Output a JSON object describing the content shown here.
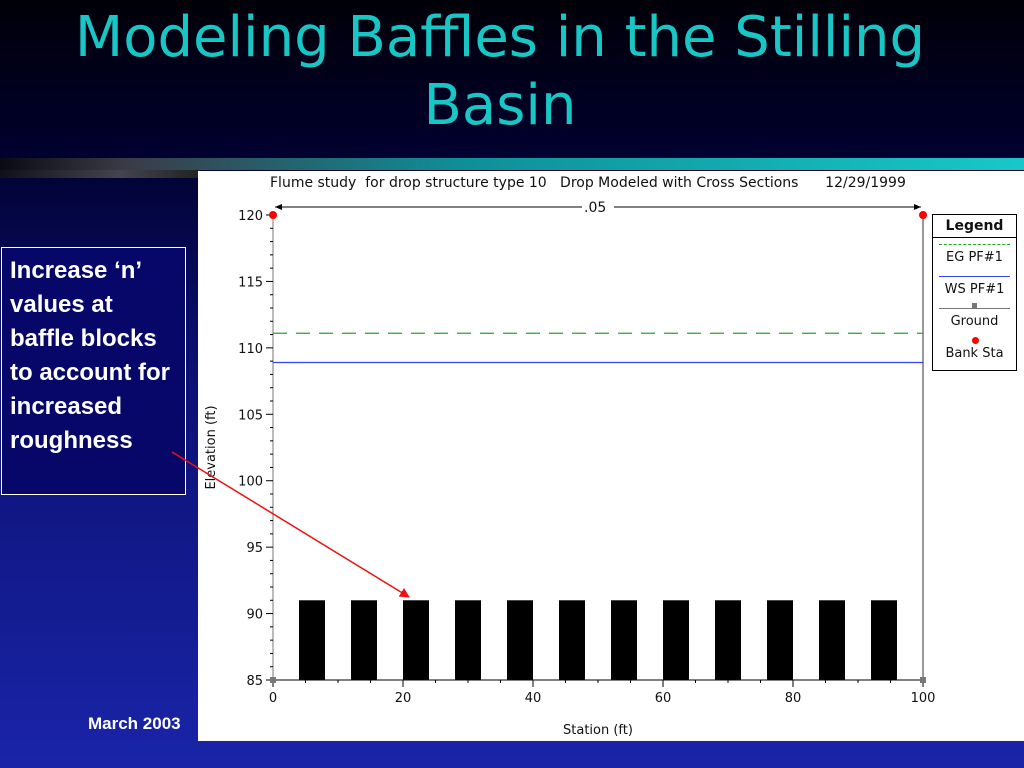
{
  "slide": {
    "title_line1": "Modeling Baffles in the Stilling",
    "title_line2": "Basin",
    "callout_text": "Increase ‘n’ values at baffle blocks to account for increased roughness",
    "footer_date": "March 2003"
  },
  "chart_data": {
    "type": "line",
    "title": "Flume study  for drop structure type 10   Drop Modeled with Cross Sections      12/29/1999",
    "xlabel": "Station (ft)",
    "ylabel": "Elevation (ft)",
    "xlim": [
      0,
      100
    ],
    "ylim": [
      85,
      120
    ],
    "x_ticks": [
      0,
      20,
      40,
      60,
      80,
      100
    ],
    "y_ticks": [
      85,
      90,
      95,
      100,
      105,
      110,
      115,
      120
    ],
    "grid": false,
    "legend_position": "right",
    "manning_n_label": ".05",
    "series": [
      {
        "name": "EG PF#1",
        "color": "#22aa22",
        "style": "dashed",
        "x": [
          0,
          100
        ],
        "y": [
          111.1,
          111.1
        ]
      },
      {
        "name": "WS PF#1",
        "color": "#3344ee",
        "style": "solid",
        "x": [
          0,
          100
        ],
        "y": [
          108.9,
          108.9
        ]
      },
      {
        "name": "Ground",
        "color": "#777777",
        "style": "solid"
      },
      {
        "name": "Bank Sta",
        "color": "#ff0000",
        "style": "marker",
        "x": [
          0,
          100
        ],
        "y": [
          120,
          120
        ]
      }
    ],
    "baffle_blocks": {
      "color": "#000000",
      "bottom": 85,
      "top": 91,
      "x_ranges": [
        [
          4,
          8
        ],
        [
          12,
          16
        ],
        [
          20,
          24
        ],
        [
          28,
          32
        ],
        [
          36,
          40
        ],
        [
          44,
          48
        ],
        [
          52,
          56
        ],
        [
          60,
          64
        ],
        [
          68,
          72
        ],
        [
          76,
          80
        ],
        [
          84,
          88
        ],
        [
          92,
          96
        ]
      ]
    }
  }
}
